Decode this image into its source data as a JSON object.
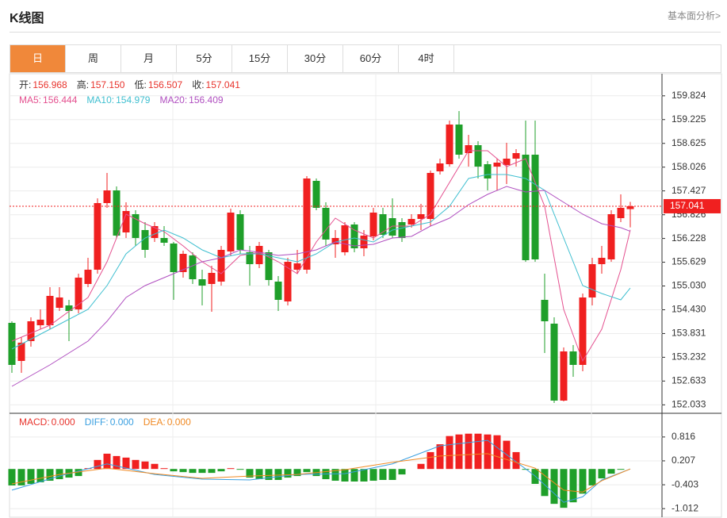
{
  "header": {
    "title": "K线图",
    "link": "基本面分析>"
  },
  "tabs": [
    "日",
    "周",
    "月",
    "5分",
    "15分",
    "30分",
    "60分",
    "4时"
  ],
  "active_tab": 0,
  "chart_data": [
    {
      "type": "candlestick",
      "info": [
        {
          "label": "开:",
          "value": "156.968"
        },
        {
          "label": "高:",
          "value": "157.150"
        },
        {
          "label": "低:",
          "value": "156.507"
        },
        {
          "label": "收:",
          "value": "157.041"
        }
      ],
      "open": [
        154.1,
        153.14,
        153.64,
        154.04,
        154.04,
        154.48,
        154.54,
        154.44,
        155.08,
        155.44,
        157.12,
        157.44,
        156.38,
        156.84,
        156.44,
        156.24,
        156.24,
        156.1,
        155.38,
        155.8,
        155.2,
        155.08,
        155.14,
        155.9,
        156.84,
        155.88,
        155.58,
        155.88,
        155.14,
        154.64,
        155.44,
        155.44,
        157.68,
        157.0,
        156.08,
        155.88,
        156.58,
        155.98,
        156.28,
        156.84,
        156.74,
        156.64,
        156.58,
        156.72,
        156.72,
        157.92,
        158.1,
        159.1,
        158.38,
        158.58,
        158.1,
        158.04,
        158.08,
        158.24,
        158.34,
        158.34,
        154.68,
        154.08,
        152.14,
        153.38,
        153.04,
        154.74,
        155.58,
        155.7,
        156.74,
        156.968
      ],
      "high": [
        154.14,
        153.74,
        154.24,
        154.44,
        155.0,
        155.0,
        154.68,
        155.34,
        155.74,
        157.24,
        157.88,
        157.54,
        157.14,
        156.94,
        156.64,
        156.64,
        156.54,
        156.14,
        155.92,
        155.88,
        155.44,
        155.54,
        156.04,
        156.98,
        156.94,
        156.04,
        156.14,
        155.94,
        155.28,
        155.74,
        155.94,
        157.8,
        157.74,
        157.14,
        156.44,
        156.64,
        156.64,
        156.44,
        157.0,
        157.0,
        157.24,
        156.74,
        156.84,
        157.1,
        157.94,
        158.24,
        159.2,
        159.44,
        158.84,
        158.68,
        158.18,
        158.24,
        158.64,
        158.48,
        159.2,
        159.2,
        155.34,
        154.24,
        153.48,
        153.54,
        154.84,
        155.74,
        156.04,
        156.94,
        157.34,
        157.15
      ],
      "low": [
        152.84,
        152.84,
        153.5,
        153.94,
        153.94,
        154.4,
        153.64,
        154.34,
        155.0,
        155.34,
        157.0,
        156.24,
        156.24,
        156.04,
        155.74,
        156.14,
        156.04,
        154.68,
        155.24,
        155.08,
        154.54,
        154.38,
        155.04,
        155.8,
        155.84,
        155.04,
        155.48,
        155.04,
        154.4,
        154.54,
        155.34,
        155.34,
        156.94,
        156.04,
        155.74,
        155.8,
        155.88,
        155.78,
        156.18,
        156.24,
        156.24,
        156.14,
        156.5,
        156.44,
        156.54,
        157.84,
        158.04,
        158.24,
        158.04,
        157.74,
        157.44,
        157.44,
        157.6,
        158.04,
        155.64,
        155.64,
        153.34,
        152.08,
        152.12,
        152.74,
        152.88,
        154.54,
        155.34,
        155.64,
        156.64,
        156.507
      ],
      "close": [
        153.04,
        153.6,
        154.14,
        154.18,
        154.78,
        154.74,
        154.4,
        155.24,
        155.44,
        157.12,
        157.44,
        156.3,
        156.92,
        156.24,
        155.94,
        156.54,
        156.12,
        155.38,
        155.84,
        155.2,
        155.04,
        155.36,
        155.94,
        156.88,
        155.94,
        155.58,
        156.04,
        155.18,
        154.68,
        155.64,
        155.6,
        157.74,
        157.0,
        156.2,
        156.24,
        156.56,
        155.98,
        156.3,
        156.88,
        156.32,
        156.3,
        156.24,
        156.72,
        156.84,
        157.88,
        158.12,
        159.1,
        158.34,
        158.58,
        158.04,
        157.74,
        158.14,
        158.24,
        158.38,
        155.68,
        155.7,
        154.14,
        152.14,
        153.38,
        153.04,
        154.74,
        155.58,
        155.74,
        156.84,
        157.0,
        157.041
      ],
      "up_color": "#f02020",
      "down_color": "#1f9f2a",
      "info_label_color": "#333",
      "info_value_color": "#e8332c",
      "series": [
        {
          "name": "MA5:",
          "last_label": "156.444",
          "color": "#e4508f",
          "x": [
            0,
            4,
            8,
            10,
            12,
            14,
            16,
            18,
            20,
            22,
            24,
            26,
            28,
            30,
            32,
            34,
            36,
            38,
            40,
            42,
            44,
            46,
            48,
            50,
            52,
            54,
            56,
            58,
            60,
            62,
            64,
            65
          ],
          "values": [
            153.64,
            154.04,
            154.74,
            155.64,
            156.84,
            156.6,
            156.4,
            156.04,
            155.64,
            155.34,
            155.8,
            155.88,
            155.64,
            155.34,
            156.14,
            156.74,
            156.44,
            156.24,
            156.54,
            156.54,
            156.84,
            157.64,
            158.44,
            158.44,
            158.04,
            158.24,
            157.04,
            154.44,
            153.14,
            153.94,
            155.44,
            156.444
          ]
        },
        {
          "name": "MA10:",
          "last_label": "154.979",
          "color": "#3fbfd0",
          "x": [
            0,
            4,
            8,
            10,
            12,
            14,
            16,
            18,
            20,
            22,
            24,
            26,
            28,
            30,
            32,
            34,
            36,
            38,
            40,
            42,
            44,
            46,
            48,
            50,
            52,
            54,
            56,
            58,
            60,
            62,
            64,
            65
          ],
          "values": [
            153.44,
            153.94,
            154.44,
            155.04,
            155.84,
            156.24,
            156.44,
            156.24,
            155.94,
            155.74,
            155.84,
            155.84,
            155.74,
            155.64,
            155.84,
            156.14,
            156.24,
            156.14,
            156.44,
            156.54,
            156.64,
            157.04,
            157.74,
            157.84,
            157.84,
            157.74,
            157.44,
            156.24,
            155.04,
            154.84,
            154.68,
            154.979
          ]
        },
        {
          "name": "MA20:",
          "last_label": "156.409",
          "color": "#b04fc0",
          "x": [
            0,
            4,
            8,
            10,
            12,
            14,
            16,
            18,
            20,
            22,
            24,
            26,
            28,
            30,
            32,
            34,
            36,
            38,
            40,
            42,
            44,
            46,
            48,
            50,
            52,
            54,
            56,
            58,
            60,
            62,
            64,
            65
          ],
          "values": [
            152.5,
            153.04,
            153.64,
            154.14,
            154.74,
            155.04,
            155.24,
            155.44,
            155.64,
            155.74,
            155.94,
            155.88,
            155.8,
            155.84,
            155.94,
            156.14,
            156.04,
            156.08,
            156.24,
            156.28,
            156.54,
            156.74,
            157.08,
            157.34,
            157.54,
            157.4,
            157.44,
            157.14,
            156.84,
            156.6,
            156.5,
            156.409
          ]
        }
      ],
      "ylim": [
        151.84,
        160.34
      ],
      "yticks": [
        159.824,
        159.225,
        158.625,
        158.026,
        157.427,
        156.826,
        156.228,
        155.629,
        {
          "value": 155.03,
          "label": "155.030"
        },
        {
          "value": 154.43,
          "label": "154.430"
        },
        153.831,
        153.232,
        152.633,
        152.033
      ],
      "grid": true,
      "last_price_color": "#f02020"
    },
    {
      "type": "macd",
      "series": [
        {
          "name": "MACD:",
          "last_label": "0.000",
          "color": "#e8332c",
          "values": [
            -0.42,
            -0.42,
            -0.38,
            -0.34,
            -0.3,
            -0.26,
            -0.22,
            -0.18,
            0.02,
            0.23,
            0.39,
            0.33,
            0.29,
            0.23,
            0.19,
            0.13,
            0.02,
            -0.06,
            -0.08,
            -0.1,
            -0.1,
            -0.1,
            -0.06,
            0.02,
            -0.02,
            -0.22,
            -0.26,
            -0.28,
            -0.28,
            -0.22,
            -0.18,
            -0.08,
            -0.18,
            -0.26,
            -0.3,
            -0.32,
            -0.32,
            -0.32,
            -0.3,
            -0.28,
            -0.28,
            -0.14,
            0,
            0.13,
            0.43,
            0.63,
            0.84,
            0.88,
            0.9,
            0.9,
            0.88,
            0.86,
            0.72,
            0.43,
            -0.02,
            -0.38,
            -0.69,
            -0.89,
            -0.99,
            -0.85,
            -0.63,
            -0.42,
            -0.24,
            -0.12,
            -0.02,
            0
          ]
        },
        {
          "name": "DIFF:",
          "last_label": "0.000",
          "color": "#3a9fe0",
          "x": [
            0,
            5,
            10,
            15,
            20,
            25,
            30,
            35,
            40,
            45,
            50,
            55,
            58,
            60,
            62,
            65
          ],
          "values": [
            -0.54,
            -0.18,
            0.13,
            -0.14,
            -0.26,
            -0.28,
            -0.14,
            -0.12,
            0.13,
            0.59,
            0.73,
            -0.18,
            -0.85,
            -0.71,
            -0.28,
            0
          ]
        },
        {
          "name": "DEA:",
          "last_label": "0.000",
          "color": "#f08a24",
          "x": [
            0,
            5,
            10,
            15,
            20,
            25,
            30,
            35,
            40,
            45,
            50,
            55,
            58,
            60,
            62,
            65
          ],
          "values": [
            -0.38,
            -0.14,
            0.02,
            -0.12,
            -0.24,
            -0.18,
            -0.14,
            -0.02,
            0.17,
            0.33,
            0.39,
            0.02,
            -0.54,
            -0.59,
            -0.3,
            0
          ]
        }
      ],
      "up_color": "#f02020",
      "down_color": "#1f9f2a",
      "ylim": [
        -1.19,
        1.4
      ],
      "yticks": [
        0.816,
        0.207,
        -0.403,
        -1.012
      ],
      "grid": true
    }
  ]
}
